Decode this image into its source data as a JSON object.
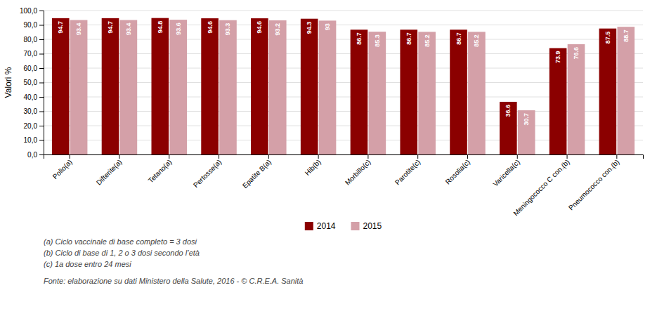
{
  "chart_data": {
    "type": "bar",
    "categories": [
      "Polio(a)",
      "Difterite(a)",
      "Tetano(a)",
      "Pertosse(a)",
      "Epatite B(a)",
      "Hib(b)",
      "Morbillo(c)",
      "Parotite(c)",
      "Rosolia(c)",
      "Varicella(c)",
      "Meningococco C con.(b)",
      "Pneumococco con.(b)"
    ],
    "series": [
      {
        "name": "2014",
        "color": "#8B0000",
        "values": [
          94.7,
          94.7,
          94.8,
          94.6,
          94.6,
          94.3,
          86.7,
          86.7,
          86.7,
          36.6,
          73.9,
          87.5
        ]
      },
      {
        "name": "2015",
        "color": "#D4A0A8",
        "values": [
          93.4,
          93.4,
          93.6,
          93.3,
          93.2,
          93.0,
          85.3,
          85.2,
          85.2,
          30.7,
          76.6,
          88.7
        ]
      }
    ],
    "y_label": "Valori %",
    "ylim": [
      0,
      100
    ],
    "yticks": [
      {
        "value": 0,
        "label": "0,0"
      },
      {
        "value": 10,
        "label": "10,0"
      },
      {
        "value": 20,
        "label": "20,0"
      },
      {
        "value": 30,
        "label": "30,0"
      },
      {
        "value": 40,
        "label": "40,0"
      },
      {
        "value": 50,
        "label": "50,0"
      },
      {
        "value": 60,
        "label": "60,0"
      },
      {
        "value": 70,
        "label": "70,0"
      },
      {
        "value": 80,
        "label": "80,0"
      },
      {
        "value": 90,
        "label": "90,0"
      },
      {
        "value": 100,
        "label": "100,0"
      }
    ],
    "grid": true,
    "legend": "bottom",
    "data_labels": true,
    "annotations": [
      "(a) Ciclo vaccinale di base completo = 3 dosi",
      "(b) Ciclo di base di 1, 2 o 3 dosi secondo l’età",
      "(c) 1a dose entro 24 mesi",
      "Fonte: elaborazione su dati Ministero della Salute, 2016 - © C.R.E.A. Sanità"
    ]
  }
}
